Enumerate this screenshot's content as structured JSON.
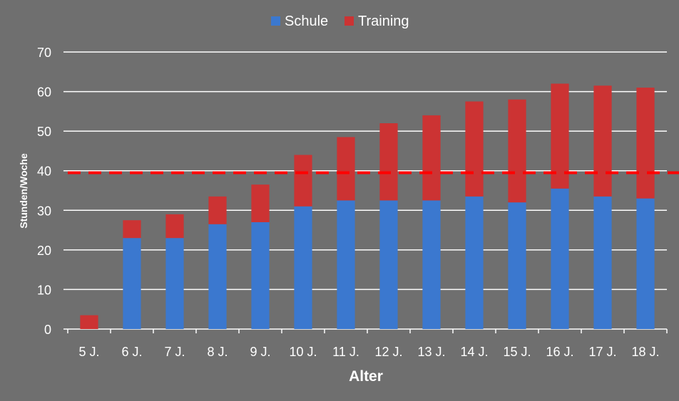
{
  "chart_data": {
    "type": "bar",
    "stacked": true,
    "categories": [
      "5 J.",
      "6 J.",
      "7 J.",
      "8 J.",
      "9 J.",
      "10 J.",
      "11 J.",
      "12 J.",
      "13 J.",
      "14 J.",
      "15 J.",
      "16 J.",
      "17 J.",
      "18 J."
    ],
    "series": [
      {
        "name": "Schule",
        "color": "#3b78cf",
        "values": [
          0,
          23,
          23,
          26.5,
          27,
          31,
          32.5,
          32.5,
          32.5,
          33.5,
          32,
          35.5,
          33.5,
          33
        ]
      },
      {
        "name": "Training",
        "color": "#cc3333",
        "values": [
          3.5,
          4.5,
          6,
          7,
          9.5,
          13,
          16,
          19.5,
          21.5,
          24,
          26,
          26.5,
          28,
          28
        ]
      }
    ],
    "reference_line": {
      "value": 39.5,
      "color": "#ff0000",
      "style": "dashed"
    },
    "xlabel": "Alter",
    "ylabel": "Stunden/Woche",
    "ylim": [
      0,
      70
    ],
    "yticks": [
      0,
      10,
      20,
      30,
      40,
      50,
      60,
      70
    ],
    "grid": true,
    "legend": "top-center"
  },
  "colors": {
    "background": "#6f6f6f",
    "gridline": "#ffffff",
    "text": "#ffffff"
  }
}
